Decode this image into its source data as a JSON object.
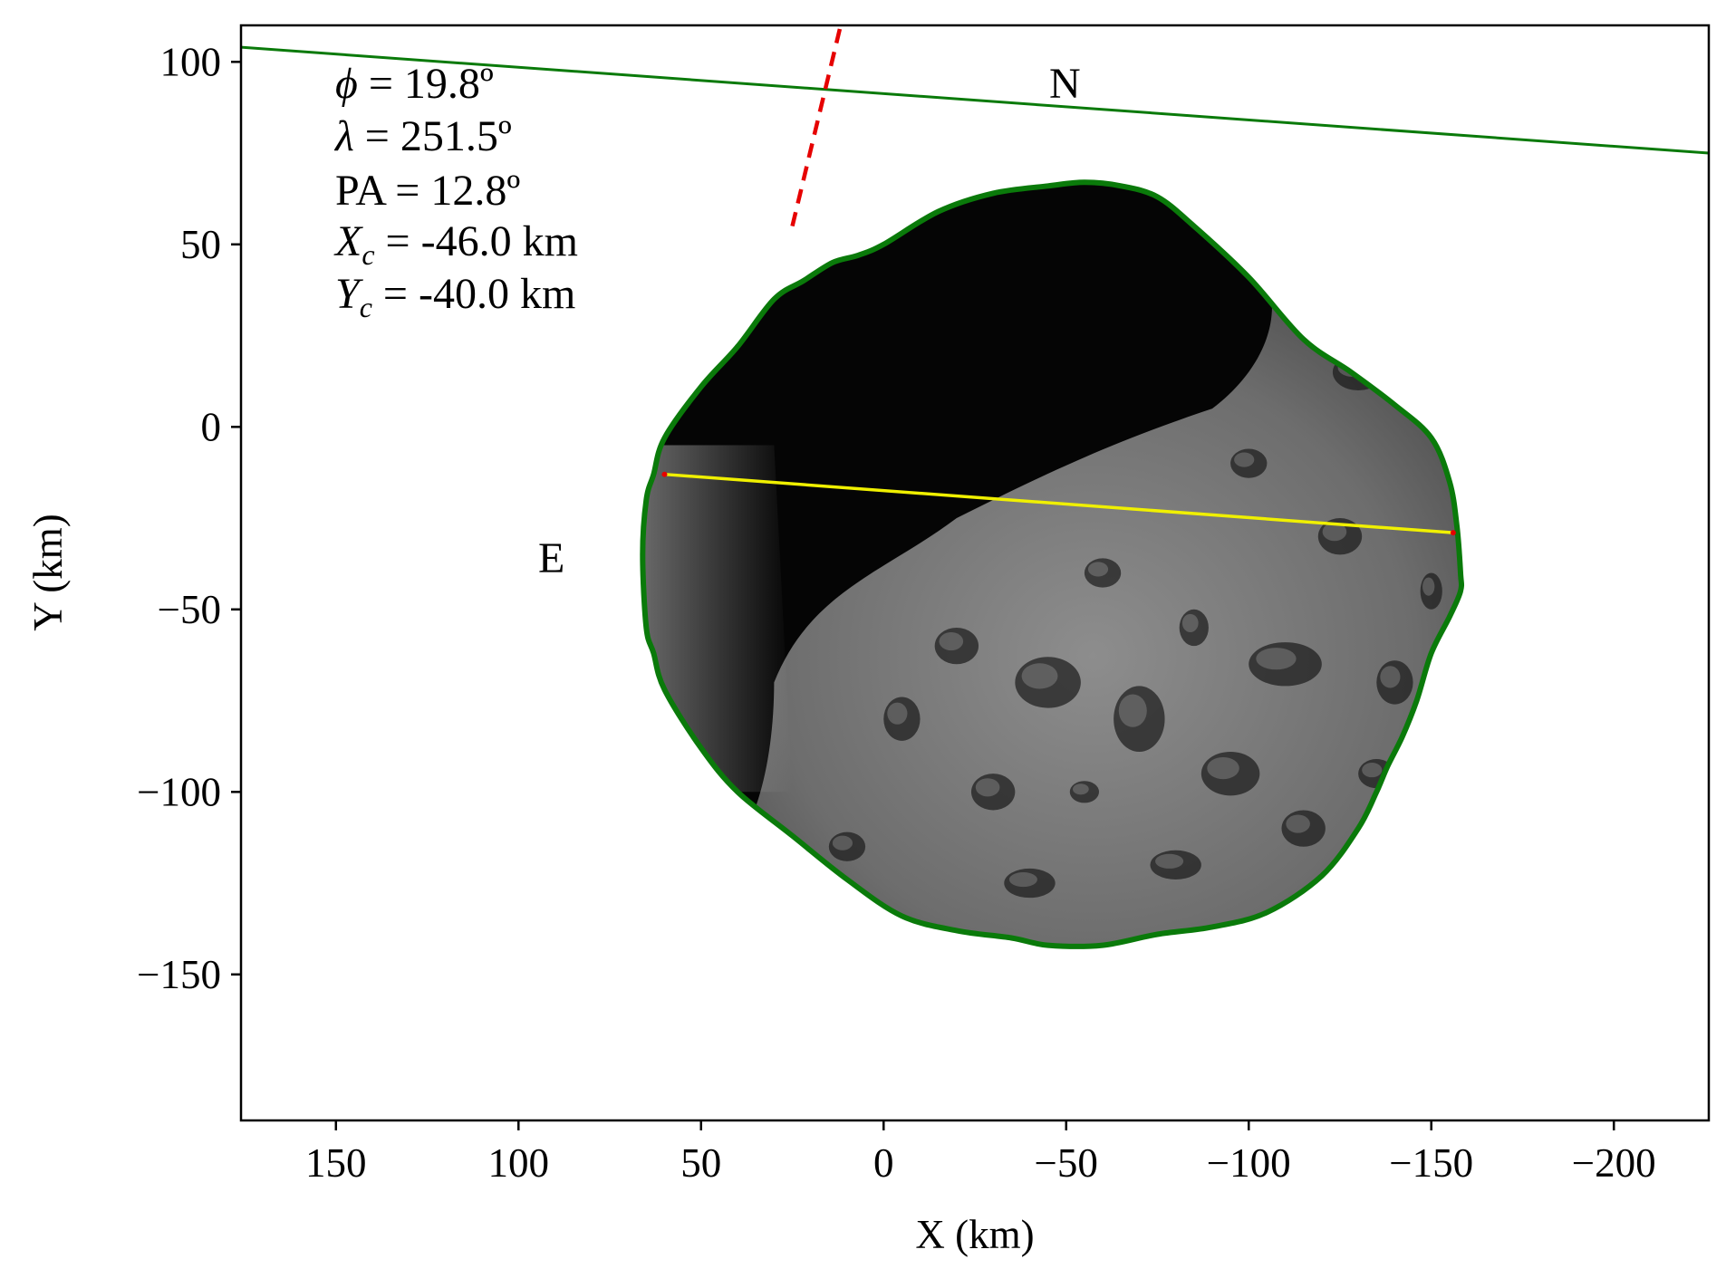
{
  "chart_data": {
    "type": "scatter",
    "title": "",
    "xlabel": "X (km)",
    "ylabel": "Y (km)",
    "xlim": [
      176,
      -226
    ],
    "ylim": [
      -190,
      110
    ],
    "x_ticks": [
      150,
      100,
      50,
      0,
      -50,
      -100,
      -150,
      -200
    ],
    "x_tick_labels": [
      "150",
      "100",
      "50",
      "0",
      "−50",
      "−100",
      "−150",
      "−200"
    ],
    "y_ticks": [
      100,
      50,
      0,
      -50,
      -100,
      -150
    ],
    "y_tick_labels": [
      "100",
      "50",
      "0",
      "−50",
      "−100",
      "−150"
    ],
    "grid": false,
    "annotations": {
      "phi": {
        "symbol": "ϕ",
        "text": " = 19.8º"
      },
      "lambda": {
        "symbol": "λ",
        "text": " = 251.5º"
      },
      "pa": {
        "text": "PA = 12.8º"
      },
      "xc": {
        "symbol": "X",
        "sub": "c",
        "text": " = -46.0 km"
      },
      "yc": {
        "symbol": "Y",
        "sub": "c",
        "text": " = -40.0 km"
      }
    },
    "direction_labels": {
      "north": "N",
      "east": "E"
    },
    "north_direction_x": [
      12,
      25
    ],
    "north_direction_y": [
      109,
      55
    ],
    "chord": {
      "x": [
        60,
        -156
      ],
      "y": [
        -13,
        -29
      ]
    },
    "horizon_line": {
      "x": [
        176,
        -226
      ],
      "y": [
        104,
        75
      ]
    },
    "asteroid_outline": {
      "x": [
        0,
        -15,
        -30,
        -45,
        -55,
        -65,
        -75,
        -85,
        -100,
        -115,
        -128,
        -140,
        -150,
        -155,
        -157,
        -158,
        -158,
        -155,
        -150,
        -146,
        -142,
        -138,
        -135,
        -130,
        -120,
        -105,
        -90,
        -75,
        -60,
        -45,
        -35,
        -20,
        -5,
        10,
        25,
        40,
        50,
        60,
        63,
        65,
        66,
        65,
        63,
        60,
        50,
        40,
        30,
        22,
        14,
        7
      ],
      "y": [
        50,
        59,
        64,
        66,
        67,
        66,
        63,
        55,
        41,
        24,
        15,
        6,
        -3,
        -15,
        -27,
        -40,
        -45,
        -52,
        -62,
        -75,
        -85,
        -93,
        -100,
        -110,
        -123,
        -133,
        -137,
        -139,
        -142,
        -142,
        -140,
        -138,
        -134,
        -124,
        -112,
        -100,
        -88,
        -72,
        -62,
        -55,
        -35,
        -20,
        -13,
        -3,
        11,
        22,
        35,
        40,
        45,
        47
      ]
    },
    "colors": {
      "outline": "#0a7a0a",
      "horizon": "#0a7a0a",
      "chord": "#f0f000",
      "chord_end": "#e60000",
      "north_line": "#e60000",
      "dark_terrain": "#050505",
      "lit_terrain": "#8a8a8a",
      "bright_limb": "#cfcfcf"
    }
  }
}
